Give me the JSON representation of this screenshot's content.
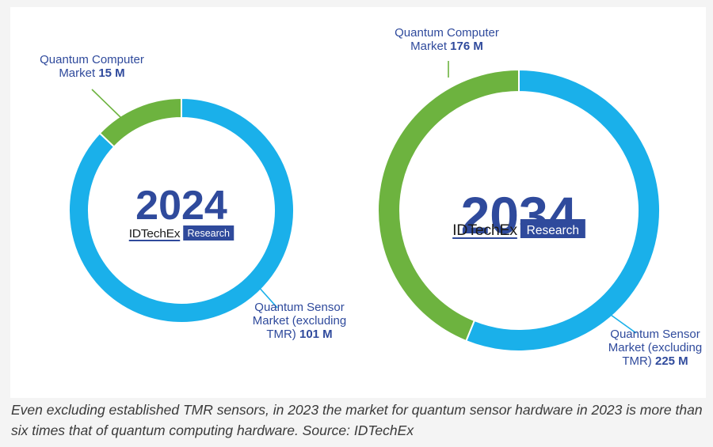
{
  "colors": {
    "sensor": "#1ab0ea",
    "computer": "#6db33f",
    "year_text": "#2f4a9c",
    "logo_box": "#2f4a9c",
    "callout_text": "#2f4a9c"
  },
  "chart_data": [
    {
      "type": "pie",
      "variant": "donut",
      "center_label": "2024",
      "logo": {
        "brand": "IDTechEx",
        "tag": "Research"
      },
      "units": "M",
      "slices": [
        {
          "name": "Quantum Computer Market",
          "value": 15,
          "label_lines": [
            "Quantum Computer",
            "Market"
          ],
          "value_label": "15 M"
        },
        {
          "name": "Quantum Sensor Market (excluding TMR)",
          "value": 101,
          "label_lines": [
            "Quantum Sensor",
            "Market (excluding",
            "TMR)"
          ],
          "value_label": "101 M"
        }
      ]
    },
    {
      "type": "pie",
      "variant": "donut",
      "center_label": "2034",
      "logo": {
        "brand": "IDTechEx",
        "tag": "Research"
      },
      "units": "M",
      "slices": [
        {
          "name": "Quantum Computer Market",
          "value": 176,
          "label_lines": [
            "Quantum Computer",
            "Market"
          ],
          "value_label": "176 M"
        },
        {
          "name": "Quantum Sensor Market (excluding TMR)",
          "value": 225,
          "label_lines": [
            "Quantum Sensor",
            "Market (excluding",
            "TMR)"
          ],
          "value_label": "225 M"
        }
      ]
    }
  ],
  "caption": "Even excluding established TMR sensors, in 2023 the market for quantum sensor hardware in 2023 is more than six times that of quantum computing hardware. Source: IDTechEx"
}
